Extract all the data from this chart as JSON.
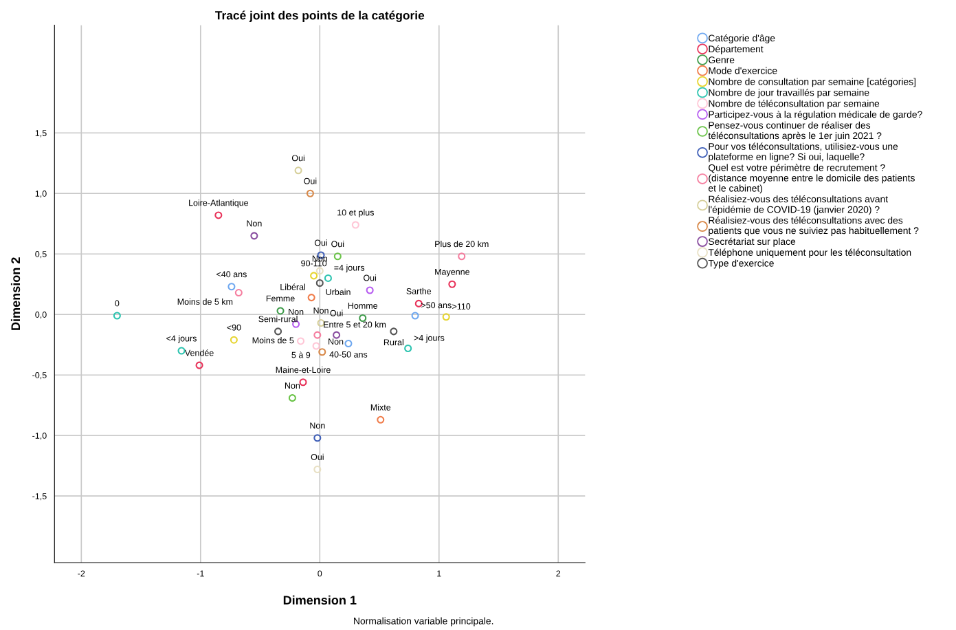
{
  "chart_data": {
    "type": "scatter",
    "title": "Tracé joint des points de la catégorie",
    "xlabel": "Dimension 1",
    "ylabel": "Dimension 2",
    "xlim": [
      -2.225,
      2.225
    ],
    "ylim": [
      -2.05,
      2.39
    ],
    "xticks": [
      -2,
      -1,
      0,
      1,
      2
    ],
    "yticks": [
      {
        "value": -1.5,
        "label": "-1,5"
      },
      {
        "value": -1.0,
        "label": "-1,0"
      },
      {
        "value": -0.5,
        "label": "-0,5"
      },
      {
        "value": 0,
        "label": "0,0"
      },
      {
        "value": 0.5,
        "label": "0,5"
      },
      {
        "value": 1.0,
        "label": "1,0"
      },
      {
        "value": 1.5,
        "label": "1,5"
      }
    ],
    "grid": true,
    "legend": "right",
    "marker": "circle",
    "annotations": [
      {
        "text": "<40 ans",
        "x": -0.74,
        "y": 0.23
      },
      {
        "text": ">50 ans",
        "x": 0.8,
        "y": -0.01
      },
      {
        "text": "40-50 ans",
        "x": 0.24,
        "y": -0.24
      },
      {
        "text": "Loire-Atlantique",
        "x": -0.85,
        "y": 0.82
      },
      {
        "text": "Mayenne",
        "x": 1.11,
        "y": 0.25
      },
      {
        "text": "Sarthe",
        "x": 0.83,
        "y": 0.09
      },
      {
        "text": "Vendée",
        "x": -1.01,
        "y": -0.42
      },
      {
        "text": "Maine-et-Loire",
        "x": -0.14,
        "y": -0.56
      },
      {
        "text": "Femme",
        "x": -0.33,
        "y": 0.03
      },
      {
        "text": "Homme",
        "x": 0.36,
        "y": -0.03
      },
      {
        "text": "Libéral",
        "x": -0.07,
        "y": 0.14
      },
      {
        "text": "Mixte",
        "x": 0.51,
        "y": -0.87
      },
      {
        "text": "90-110",
        "x": -0.05,
        "y": 0.32
      },
      {
        "text": ">110",
        "x": 1.06,
        "y": -0.02
      },
      {
        "text": "<90",
        "x": -0.72,
        "y": -0.21
      },
      {
        "text": "=4 jours",
        "x": 0.07,
        "y": 0.3
      },
      {
        "text": ">4 jours",
        "x": 0.74,
        "y": -0.28
      },
      {
        "text": "<4 jours",
        "x": -1.16,
        "y": -0.3
      },
      {
        "text": "0",
        "x": -1.7,
        "y": -0.01
      },
      {
        "text": "10 et plus",
        "x": 0.3,
        "y": 0.74
      },
      {
        "text": "Moins de 5",
        "x": -0.16,
        "y": -0.22
      },
      {
        "text": "5 à 9",
        "x": -0.03,
        "y": -0.26
      },
      {
        "text": "Oui",
        "x": 0.42,
        "y": 0.2
      },
      {
        "text": "Non",
        "x": -0.2,
        "y": -0.08
      },
      {
        "text": "Oui",
        "x": 0.15,
        "y": 0.48
      },
      {
        "text": "Non",
        "x": -0.23,
        "y": -0.69
      },
      {
        "text": "Oui",
        "x": 0.01,
        "y": 0.49
      },
      {
        "text": "Non",
        "x": -0.02,
        "y": -1.02
      },
      {
        "text": "Plus de 20 km",
        "x": 1.19,
        "y": 0.48
      },
      {
        "text": "Moins de 5 km",
        "x": -0.68,
        "y": 0.18
      },
      {
        "text": "Entre 5 et 20 km",
        "x": -0.02,
        "y": -0.17
      },
      {
        "text": "Oui",
        "x": -0.18,
        "y": 1.19
      },
      {
        "text": "Non",
        "x": 0.01,
        "y": -0.07
      },
      {
        "text": "Oui",
        "x": -0.08,
        "y": 1.0
      },
      {
        "text": "Non",
        "x": 0.02,
        "y": -0.31
      },
      {
        "text": "Non",
        "x": -0.55,
        "y": 0.65
      },
      {
        "text": "Oui",
        "x": 0.14,
        "y": -0.17
      },
      {
        "text": "Non",
        "x": 0.0,
        "y": 0.36
      },
      {
        "text": "Oui",
        "x": -0.02,
        "y": -1.28
      },
      {
        "text": "Urbain",
        "x": 0.0,
        "y": 0.26
      },
      {
        "text": "Semi-rural",
        "x": -0.35,
        "y": -0.14
      },
      {
        "text": "Rural",
        "x": 0.62,
        "y": -0.14
      },
      "Normalisation variable principale."
    ],
    "series": [
      {
        "name": "Catégorie d'âge",
        "color": "#6fa8f0",
        "x": [
          -0.74,
          0.8,
          0.24
        ],
        "values": [
          0.23,
          -0.01,
          -0.24
        ]
      },
      {
        "name": "Département",
        "color": "#e8335a",
        "x": [
          -0.85,
          1.11,
          0.83,
          -1.01,
          -0.14
        ],
        "values": [
          0.82,
          0.25,
          0.09,
          -0.42,
          -0.56
        ]
      },
      {
        "name": "Genre",
        "color": "#3f9c4b",
        "x": [
          -0.33,
          0.36
        ],
        "values": [
          0.03,
          -0.03
        ]
      },
      {
        "name": "Mode d'exercice",
        "color": "#f07c4a",
        "x": [
          -0.07,
          0.51
        ],
        "values": [
          0.14,
          -0.87
        ]
      },
      {
        "name": "Nombre de consultation par semaine [catégories]",
        "color": "#e6d530",
        "x": [
          -0.05,
          1.06,
          -0.72
        ],
        "values": [
          0.32,
          -0.02,
          -0.21
        ]
      },
      {
        "name": "Nombre de jour travaillés par semaine",
        "color": "#2ec4b0",
        "x": [
          0.07,
          0.74,
          -1.16,
          -1.7
        ],
        "values": [
          0.3,
          -0.28,
          -0.3,
          -0.01
        ]
      },
      {
        "name": "Nombre de téléconsultation par semaine",
        "color": "#ffc6d6",
        "x": [
          0.3,
          -0.16,
          -0.03
        ],
        "values": [
          0.74,
          -0.22,
          -0.26
        ]
      },
      {
        "name": "Participez-vous à la régulation médicale de garde?",
        "color": "#b65cf0",
        "x": [
          0.42,
          -0.2
        ],
        "values": [
          0.2,
          -0.08
        ]
      },
      {
        "name": "Pensez-vous continuer de réaliser des téléconsultations après le 1er juin 2021 ?",
        "color": "#6cc44a",
        "x": [
          0.15,
          -0.23
        ],
        "values": [
          0.48,
          -0.69
        ]
      },
      {
        "name": "Pour vos téléconsultations, utilisiez-vous une plateforme en ligne? Si oui, laquelle?",
        "color": "#4060b8",
        "x": [
          0.01,
          -0.02
        ],
        "values": [
          0.49,
          -1.02
        ]
      },
      {
        "name": "Quel est votre périmètre de recrutement ? (distance moyenne entre le domicile des patients et le cabinet)",
        "color": "#f57fa0",
        "x": [
          1.19,
          -0.68,
          -0.02
        ],
        "values": [
          0.48,
          0.18,
          -0.17
        ]
      },
      {
        "name": "Réalisiez-vous des téléconsultations avant l'épidémie de COVID-19 (janvier 2020) ?",
        "color": "#d6cf9a",
        "x": [
          -0.18,
          0.01
        ],
        "values": [
          1.19,
          -0.07
        ]
      },
      {
        "name": "Réalisiez-vous des téléconsultations avec des patients que vous ne suiviez pas habituellement ?",
        "color": "#d8894a",
        "x": [
          -0.08,
          0.02
        ],
        "values": [
          1.0,
          -0.31
        ]
      },
      {
        "name": "Secrétariat sur place",
        "color": "#8a4fa0",
        "x": [
          -0.55,
          0.14
        ],
        "values": [
          0.65,
          -0.17
        ]
      },
      {
        "name": "Téléphone uniquement pour les téléconsultation",
        "color": "#e8e0c4",
        "x": [
          0.0,
          -0.02
        ],
        "values": [
          0.36,
          -1.28
        ]
      },
      {
        "name": "Type d'exercice",
        "color": "#555555",
        "x": [
          0.0,
          -0.35,
          0.62
        ],
        "values": [
          0.26,
          -0.14,
          -0.14
        ]
      }
    ]
  }
}
